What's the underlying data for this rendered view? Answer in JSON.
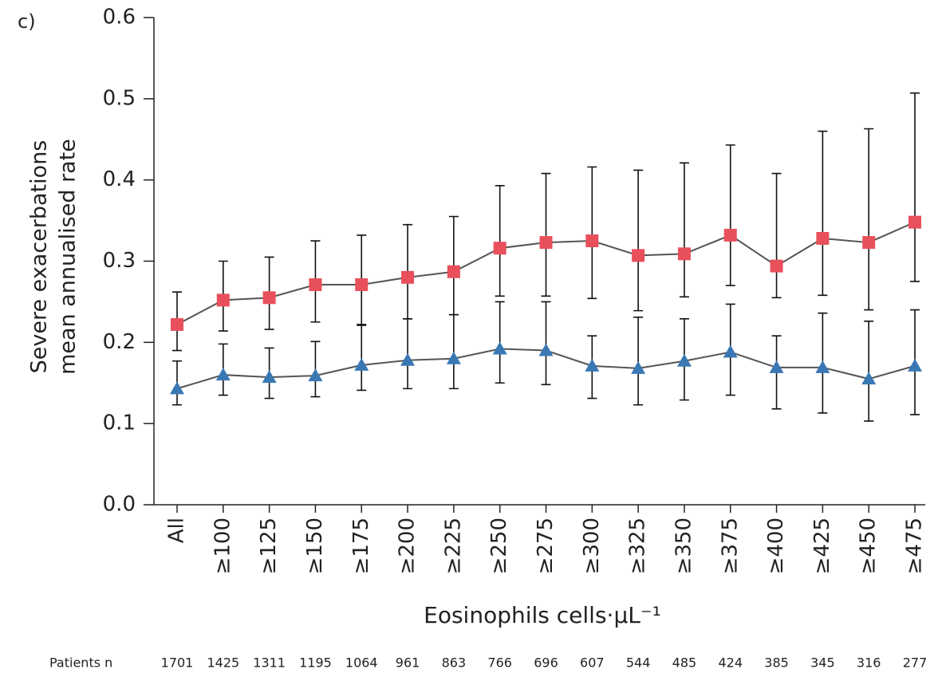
{
  "chart_data": {
    "type": "line",
    "panel_label": "c)",
    "y_label_lines": [
      "Severe exacerbations",
      "mean annualised rate"
    ],
    "x_label": "Eosinophils cells·µL⁻¹",
    "categories": [
      "All",
      "≥100",
      "≥125",
      "≥150",
      "≥175",
      "≥200",
      "≥225",
      "≥250",
      "≥275",
      "≥300",
      "≥325",
      "≥350",
      "≥375",
      "≥400",
      "≥425",
      "≥450",
      "≥475"
    ],
    "series": [
      {
        "color": "#e8505b",
        "marker": "square",
        "values": [
          0.222,
          0.252,
          0.255,
          0.271,
          0.271,
          0.28,
          0.287,
          0.316,
          0.323,
          0.325,
          0.307,
          0.309,
          0.332,
          0.294,
          0.328,
          0.323,
          0.348
        ],
        "upper": [
          0.262,
          0.3,
          0.305,
          0.325,
          0.332,
          0.345,
          0.355,
          0.393,
          0.408,
          0.416,
          0.412,
          0.421,
          0.443,
          0.408,
          0.46,
          0.463,
          0.507
        ],
        "lower": [
          0.19,
          0.214,
          0.216,
          0.225,
          0.222,
          0.229,
          0.234,
          0.257,
          0.257,
          0.254,
          0.239,
          0.256,
          0.27,
          0.255,
          0.258,
          0.24,
          0.275
        ]
      },
      {
        "color": "#3a78b4",
        "marker": "triangle",
        "values": [
          0.143,
          0.16,
          0.157,
          0.159,
          0.172,
          0.178,
          0.18,
          0.192,
          0.19,
          0.171,
          0.168,
          0.177,
          0.188,
          0.169,
          0.169,
          0.155,
          0.171
        ],
        "upper": [
          0.177,
          0.198,
          0.193,
          0.201,
          0.221,
          0.229,
          0.234,
          0.25,
          0.25,
          0.208,
          0.231,
          0.229,
          0.247,
          0.208,
          0.236,
          0.226,
          0.24
        ],
        "lower": [
          0.123,
          0.135,
          0.131,
          0.133,
          0.141,
          0.143,
          0.143,
          0.15,
          0.148,
          0.131,
          0.123,
          0.129,
          0.135,
          0.118,
          0.113,
          0.103,
          0.111
        ]
      }
    ],
    "ylim": [
      0,
      0.6
    ],
    "yticks": [
      {
        "value": 0,
        "label": "0.0"
      },
      0.1,
      0.2,
      0.3,
      0.4,
      0.5,
      0.6
    ],
    "patients": {
      "label": "Patients n",
      "values": [
        1701,
        1425,
        1311,
        1195,
        1064,
        961,
        863,
        766,
        696,
        607,
        544,
        485,
        424,
        385,
        345,
        316,
        277
      ]
    }
  }
}
